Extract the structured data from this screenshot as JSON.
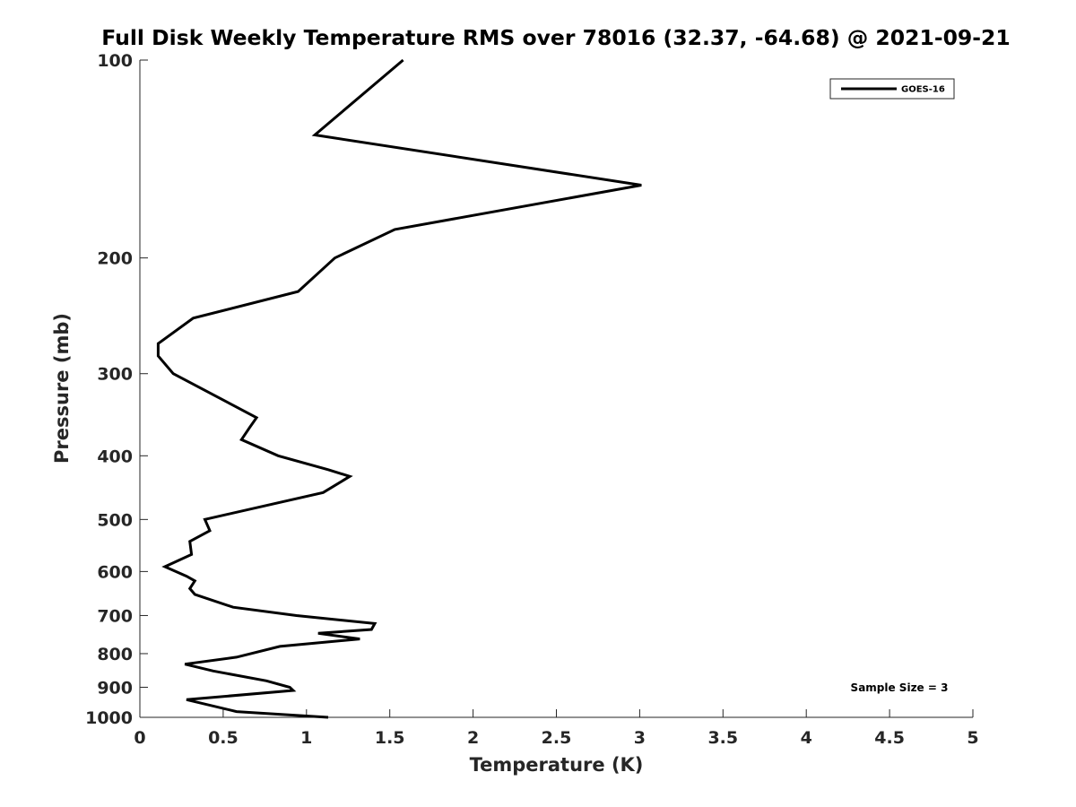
{
  "chart_data": {
    "type": "line",
    "title": "Full Disk Weekly Temperature RMS over 78016 (32.37, -64.68) @ 2021-09-21",
    "xlabel": "Temperature (K)",
    "ylabel": "Pressure (mb)",
    "xlim": [
      0,
      5
    ],
    "ylim": [
      100,
      1000
    ],
    "y_scale": "log",
    "y_reversed": true,
    "grid": false,
    "legend_position": "top-right",
    "x_ticks": [
      "0",
      "0.5",
      "1",
      "1.5",
      "2",
      "2.5",
      "3",
      "3.5",
      "4",
      "4.5",
      "5"
    ],
    "y_ticks": [
      "100",
      "200",
      "300",
      "400",
      "500",
      "600",
      "700",
      "800",
      "900",
      "1000"
    ],
    "series": [
      {
        "name": "GOES-16",
        "color": "#000000",
        "x": [
          1.58,
          1.05,
          3.01,
          1.53,
          1.53,
          1.17,
          0.95,
          0.32,
          0.11,
          0.11,
          0.2,
          0.7,
          0.66,
          0.61,
          0.83,
          1.13,
          1.26,
          1.1,
          0.39,
          0.42,
          0.3,
          0.31,
          0.15,
          0.28,
          0.33,
          0.3,
          0.33,
          0.56,
          0.94,
          1.41,
          1.39,
          1.07,
          1.32,
          0.84,
          0.58,
          0.27,
          0.44,
          0.76,
          0.9,
          0.92,
          0.28,
          0.58,
          1.13
        ],
        "y": [
          100,
          130,
          155,
          181,
          181,
          200,
          225,
          247,
          270,
          282,
          300,
          350,
          362,
          378,
          400,
          420,
          430,
          455,
          500,
          520,
          540,
          565,
          590,
          610,
          620,
          637,
          650,
          680,
          700,
          720,
          735,
          745,
          760,
          780,
          810,
          830,
          850,
          880,
          900,
          910,
          940,
          980,
          1000
        ]
      }
    ],
    "annotations": [
      "Sample Size = 3"
    ]
  }
}
